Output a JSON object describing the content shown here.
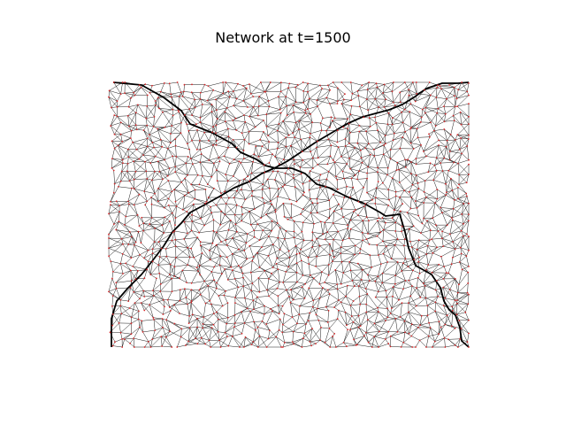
{
  "figure": {
    "title": "Network at t=1500"
  },
  "colors": {
    "background": "#ffffff",
    "edge": "#000000",
    "node": "#d62728",
    "highlighted_path": "#000000"
  },
  "network": {
    "time_step": 1500,
    "description_visible": false
  }
}
